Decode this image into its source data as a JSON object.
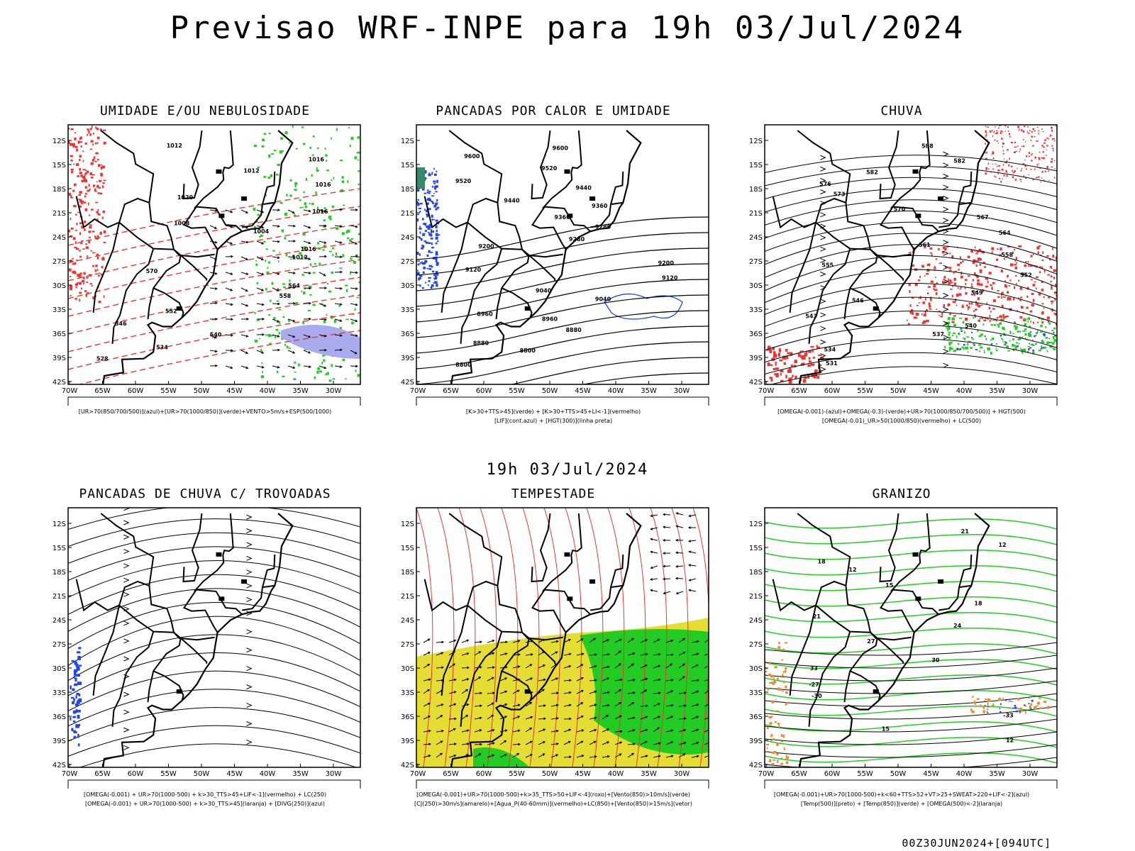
{
  "header": {
    "title": "Previsao WRF-INPE  para 19h 03/Jul/2024"
  },
  "middle_title": "19h 03/Jul/2024",
  "footer": "00Z30JUN2024+[094UTC]",
  "axes": {
    "lat_labels": [
      "12S",
      "15S",
      "18S",
      "21S",
      "24S",
      "27S",
      "30S",
      "33S",
      "36S",
      "39S",
      "42S"
    ],
    "lon_labels": [
      "70W",
      "65W",
      "60W",
      "55W",
      "50W",
      "45W",
      "40W",
      "35W",
      "30W"
    ]
  },
  "panels": [
    {
      "title": "UMIDADE E/OU NEBULOSIDADE",
      "legend": [
        "[UR>70(850/700/500)](azul)+[UR>70(1000/850)](verde)+VENTO>5m/s+ESP(500/1000)"
      ],
      "contour_labels": [
        "1012",
        "1016",
        "1012",
        "1016",
        "1020",
        "1016",
        "1008",
        "1004",
        "1016",
        "1012",
        "570",
        "564",
        "558",
        "552",
        "546",
        "540",
        "534",
        "528"
      ]
    },
    {
      "title": "PANCADAS POR CALOR E UMIDADE",
      "legend": [
        "[K>30+TTS>45](verde) + [K>30+TTS>45+LI<-1](vermelho)",
        "[LIF](cont.azul) + [HGT(300)](linha preta)"
      ],
      "contour_labels": [
        "9600",
        "9600",
        "9520",
        "9520",
        "9440",
        "9440",
        "9360",
        "9360",
        "9280",
        "9280",
        "9200",
        "9200",
        "9120",
        "9120",
        "9040",
        "9040",
        "8960",
        "8960",
        "8880",
        "8880",
        "8800",
        "8800"
      ]
    },
    {
      "title": "CHUVA",
      "legend": [
        "[OMEGA(-0.001)-(azul)+OMEGA(-0.3)-(verde)+UR>70(1000/850/700/500)] + HGT(500)",
        "[OMEGA(-0.01)_UR>50(1000/850)(vermelho) + LC(500)"
      ],
      "contour_labels": [
        "588",
        "582",
        "582",
        "576",
        "573",
        "570",
        "567",
        "564",
        "561",
        "558",
        "555",
        "552",
        "549",
        "546",
        "543",
        "540",
        "537",
        "534",
        "531"
      ]
    },
    {
      "title": "PANCADAS DE CHUVA C/ TROVOADAS",
      "legend": [
        "[OMEGA(-0.001) + UR>70(1000-500) + k>30_TTS>45+LIF<-1](vermelho) + LC(250)",
        "[OMEGA(-0.001) + UR>70(1000-500) + k>30_TTS>45](laranja) + [DIVG(250)](azul)"
      ],
      "contour_labels": []
    },
    {
      "title": "TEMPESTADE",
      "legend": [
        "[OMEGA(-0.001)+UR>70(1000-500)+k>35_TTS>50+LIF<-4](roxo)+[Vento(850)>10m/s](verde)",
        "[CJ(250)>30m/s](amarelo)+[Agua_P(40-60mm)](vermelho)+LC(850)+[Vento(850)>15m/s](vetor)"
      ],
      "contour_labels": []
    },
    {
      "title": "GRANIZO",
      "legend": [
        "[OMEGA(-0.001)+UR>70(1000-500)+k<60+TTS>52+VT>25+SWEAT>220+LIF<-2](azul)",
        "[Temp(500)](preto) + [Temp(850)](verde) + [OMEGA(500)<-2](laranja)"
      ],
      "contour_labels": [
        "21",
        "12",
        "18",
        "12",
        "15",
        "18",
        "21",
        "24",
        "27",
        "30",
        "33",
        "-27",
        "-30",
        "-33",
        "15",
        "12"
      ]
    }
  ],
  "colors": {
    "black": "#000000",
    "red": "#ee3333",
    "green": "#22cc22",
    "blue": "#2244ee",
    "lavender": "#aaaaee",
    "yellow": "#e5dd33",
    "orange": "#ee8833"
  }
}
